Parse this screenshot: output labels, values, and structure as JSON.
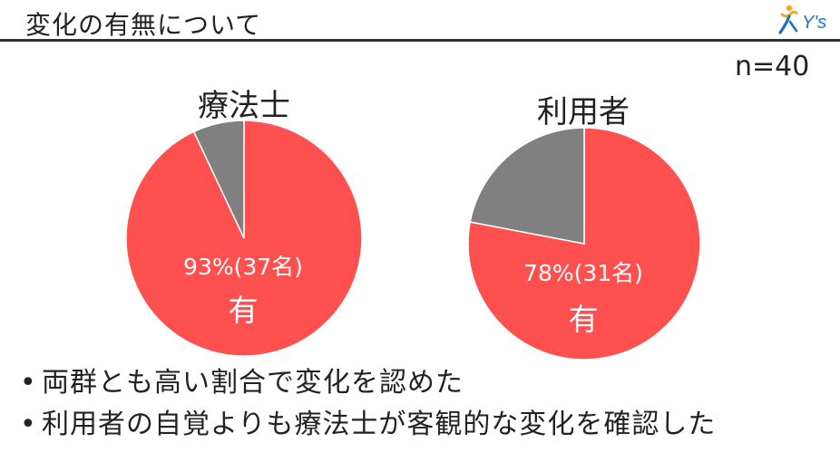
{
  "header": {
    "title": "変化の有無について",
    "logo_text": "Y's"
  },
  "sample_size_label": "n=40",
  "colors": {
    "yes": "#FF5050",
    "no": "#808080",
    "text": "#222222"
  },
  "chart_data": [
    {
      "type": "pie",
      "title": "療法士",
      "slices": [
        {
          "label": "有",
          "value": 93,
          "count_label": "93%(37名)",
          "color": "#FF5050"
        },
        {
          "label": "",
          "value": 7,
          "color": "#808080"
        }
      ]
    },
    {
      "type": "pie",
      "title": "利用者",
      "slices": [
        {
          "label": "有",
          "value": 78,
          "count_label": "78%(31名)",
          "color": "#FF5050"
        },
        {
          "label": "",
          "value": 22,
          "color": "#808080"
        }
      ]
    }
  ],
  "bullets": [
    "両群とも高い割合で変化を認めた",
    "利用者の自覚よりも療法士が客観的な変化を確認した"
  ],
  "bullet_symbol": "•"
}
